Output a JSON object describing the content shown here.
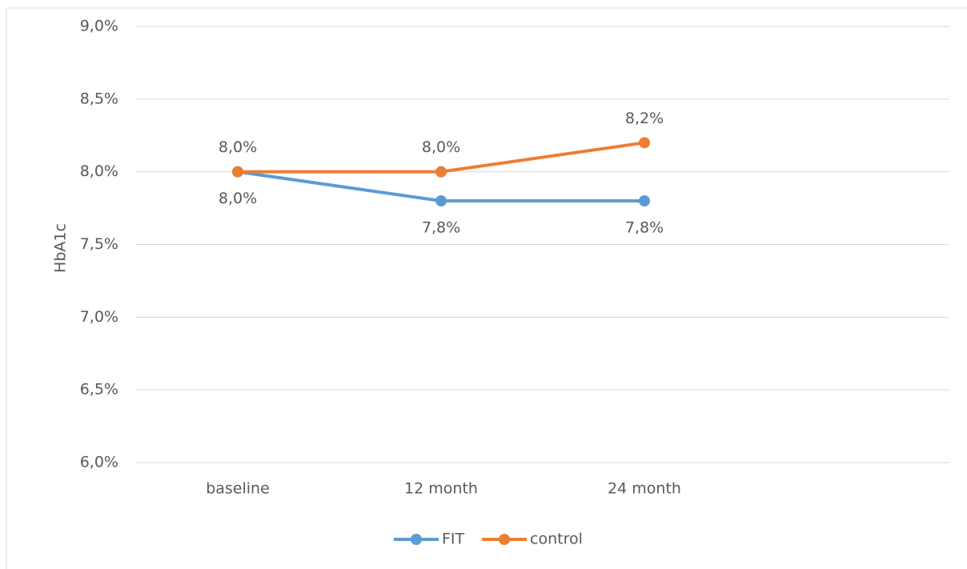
{
  "chart_data": {
    "type": "line",
    "ylabel": "HbA1c",
    "categories": [
      "baseline",
      "12 month",
      "24 month",
      null
    ],
    "series": [
      {
        "name": "FIT",
        "color": "#5b9bd5",
        "values": [
          8.0,
          7.8,
          7.8,
          null
        ],
        "value_labels": [
          "8,0%",
          "7,8%",
          "7,8%",
          null
        ],
        "label_position": "below"
      },
      {
        "name": "control",
        "color": "#ed7d31",
        "values": [
          8.0,
          8.0,
          8.2,
          null
        ],
        "value_labels": [
          "8,0%",
          "8,0%",
          "8,2%",
          null
        ],
        "label_position": "above"
      }
    ],
    "ylim": [
      6.0,
      9.0
    ],
    "yticks": [
      {
        "value": 6.0,
        "label": "6,0%"
      },
      {
        "value": 6.5,
        "label": "6,5%"
      },
      {
        "value": 7.0,
        "label": "7,0%"
      },
      {
        "value": 7.5,
        "label": "7,5%"
      },
      {
        "value": 8.0,
        "label": "8,0%"
      },
      {
        "value": 8.5,
        "label": "8,5%"
      },
      {
        "value": 9.0,
        "label": "9,0%"
      }
    ],
    "grid": true,
    "legend": "bottom"
  }
}
